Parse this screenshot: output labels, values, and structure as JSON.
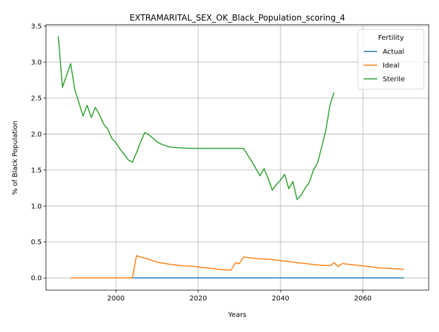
{
  "chart_data": {
    "type": "line",
    "title": "EXTRAMARITAL_SEX_OK_Black_Population_scoring_4",
    "xlabel": "Years",
    "ylabel": "% of Black Population",
    "xlim": [
      1983,
      2076
    ],
    "ylim": [
      -0.17,
      3.52
    ],
    "xticks": [
      2000,
      2020,
      2040,
      2060
    ],
    "yticks": [
      0.0,
      0.5,
      1.0,
      1.5,
      2.0,
      2.5,
      3.0,
      3.5
    ],
    "xtick_labels": [
      "2000",
      "2020",
      "2040",
      "2060"
    ],
    "ytick_labels": [
      "0.0",
      "0.5",
      "1.0",
      "1.5",
      "2.0",
      "2.5",
      "3.0",
      "3.5"
    ],
    "grid": true,
    "legend": {
      "title": "Fertility",
      "placement": "top-right"
    },
    "series": [
      {
        "name": "Actual",
        "color": "#1f77b4",
        "points": [
          [
            2004,
            0.0
          ],
          [
            2070,
            0.0
          ]
        ]
      },
      {
        "name": "Ideal",
        "color": "#ff7f0e",
        "points": [
          [
            1989,
            0.0
          ],
          [
            2004,
            0.0
          ],
          [
            2005,
            0.31
          ],
          [
            2006,
            0.29
          ],
          [
            2008,
            0.26
          ],
          [
            2010,
            0.22
          ],
          [
            2013,
            0.19
          ],
          [
            2016,
            0.17
          ],
          [
            2019,
            0.16
          ],
          [
            2022,
            0.14
          ],
          [
            2025,
            0.12
          ],
          [
            2027,
            0.11
          ],
          [
            2028,
            0.11
          ],
          [
            2029,
            0.21
          ],
          [
            2030,
            0.2
          ],
          [
            2031,
            0.29
          ],
          [
            2034,
            0.27
          ],
          [
            2037,
            0.26
          ],
          [
            2040,
            0.24
          ],
          [
            2043,
            0.22
          ],
          [
            2046,
            0.2
          ],
          [
            2049,
            0.18
          ],
          [
            2052,
            0.17
          ],
          [
            2053,
            0.21
          ],
          [
            2054,
            0.16
          ],
          [
            2055,
            0.2
          ],
          [
            2058,
            0.18
          ],
          [
            2061,
            0.16
          ],
          [
            2064,
            0.14
          ],
          [
            2067,
            0.13
          ],
          [
            2070,
            0.12
          ]
        ]
      },
      {
        "name": "Sterile",
        "color": "#2ca02c",
        "points": [
          [
            1986,
            3.36
          ],
          [
            1987,
            2.65
          ],
          [
            1989,
            2.98
          ],
          [
            1990,
            2.62
          ],
          [
            1991,
            2.44
          ],
          [
            1992,
            2.25
          ],
          [
            1993,
            2.4
          ],
          [
            1994,
            2.23
          ],
          [
            1995,
            2.37
          ],
          [
            1996,
            2.27
          ],
          [
            1997,
            2.14
          ],
          [
            1998,
            2.07
          ],
          [
            1999,
            1.94
          ],
          [
            2000,
            1.88
          ],
          [
            2001,
            1.79
          ],
          [
            2002,
            1.72
          ],
          [
            2003,
            1.64
          ],
          [
            2004,
            1.61
          ],
          [
            2005,
            1.74
          ],
          [
            2006,
            1.89
          ],
          [
            2007,
            2.02
          ],
          [
            2008,
            1.99
          ],
          [
            2009,
            1.94
          ],
          [
            2010,
            1.89
          ],
          [
            2011,
            1.86
          ],
          [
            2013,
            1.82
          ],
          [
            2015,
            1.81
          ],
          [
            2018,
            1.8
          ],
          [
            2025,
            1.8
          ],
          [
            2031,
            1.8
          ],
          [
            2032,
            1.71
          ],
          [
            2033,
            1.62
          ],
          [
            2034,
            1.52
          ],
          [
            2035,
            1.42
          ],
          [
            2036,
            1.52
          ],
          [
            2037,
            1.38
          ],
          [
            2038,
            1.22
          ],
          [
            2039,
            1.3
          ],
          [
            2040,
            1.36
          ],
          [
            2041,
            1.44
          ],
          [
            2042,
            1.24
          ],
          [
            2043,
            1.34
          ],
          [
            2044,
            1.09
          ],
          [
            2045,
            1.15
          ],
          [
            2046,
            1.25
          ],
          [
            2047,
            1.33
          ],
          [
            2048,
            1.5
          ],
          [
            2049,
            1.6
          ],
          [
            2050,
            1.82
          ],
          [
            2051,
            2.05
          ],
          [
            2052,
            2.4
          ],
          [
            2053,
            2.58
          ]
        ]
      }
    ]
  }
}
